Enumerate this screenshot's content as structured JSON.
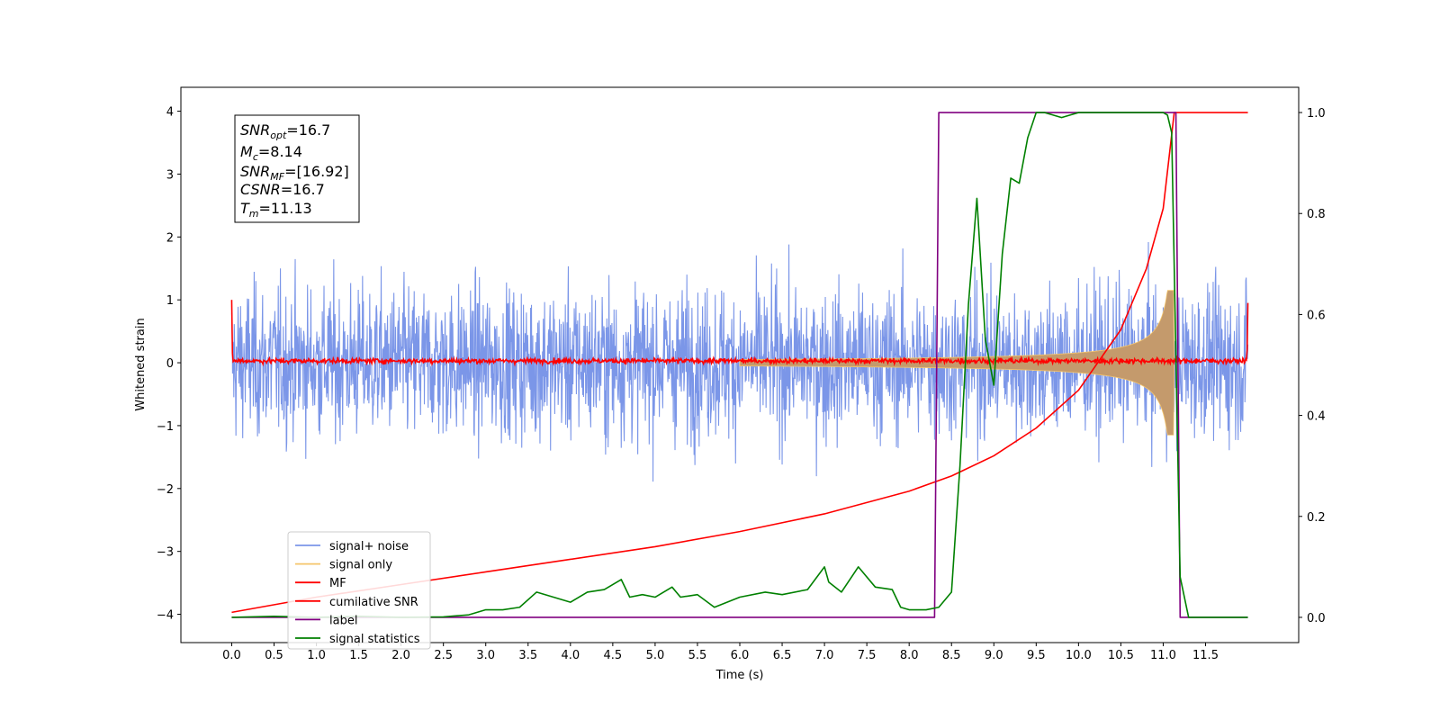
{
  "chart_data": {
    "type": "line",
    "xlabel": "Time (s)",
    "ylabel": "Whitened strain",
    "xlim": [
      -0.6,
      12.6
    ],
    "ylim": [
      -4.45,
      4.38
    ],
    "ylim_right": [
      -0.05,
      1.05
    ],
    "x_ticks": [
      "0.0",
      "0.5",
      "1.0",
      "1.5",
      "2.0",
      "2.5",
      "3.0",
      "3.5",
      "4.0",
      "4.5",
      "5.0",
      "5.5",
      "6.0",
      "6.5",
      "7.0",
      "7.5",
      "8.0",
      "8.5",
      "9.0",
      "9.5",
      "10.0",
      "10.5",
      "11.0",
      "11.5"
    ],
    "y_ticks_left": [
      "4",
      "3",
      "2",
      "1",
      "0",
      "−1",
      "−2",
      "−3",
      "−4"
    ],
    "y_ticks_right": [
      "1.0",
      "0.8",
      "0.6",
      "0.4",
      "0.2",
      "0.0"
    ],
    "legend_position": "lower-left",
    "grid": false,
    "annotation": {
      "snr_opt": {
        "base": "SNR",
        "sub": "opt",
        "value": "=16.7"
      },
      "mc": {
        "base": "M",
        "sub": "c",
        "value": "=8.14"
      },
      "snr_mf": {
        "base": "SNR",
        "sub": "MF",
        "value": "=[16.92]"
      },
      "csnr": {
        "base": "CSNR",
        "sub": "",
        "value": "=16.7"
      },
      "tm": {
        "base": "T",
        "sub": "m",
        "value": "=11.13"
      }
    },
    "series": [
      {
        "name": "signal+ noise",
        "axis": "left",
        "color": "#7b96e8",
        "duration": 12.0,
        "noise_amplitude": 1.35
      },
      {
        "name": "signal only",
        "axis": "left",
        "color": "#f5c56b",
        "fill_color": "#c49a6c",
        "merger_time": 11.13,
        "peak_amplitude": 1.15
      },
      {
        "name": "MF",
        "axis": "left",
        "color": "#ff0000",
        "baseline": 0.03,
        "spikes": [
          [
            0.0,
            1.0
          ],
          [
            12.0,
            0.95
          ]
        ]
      },
      {
        "name": "cumilative SNR",
        "axis": "right",
        "color": "#ff0000",
        "x": [
          0.0,
          1.0,
          2.0,
          3.0,
          4.0,
          5.0,
          6.0,
          7.0,
          8.0,
          8.5,
          9.0,
          9.5,
          10.0,
          10.5,
          10.8,
          11.0,
          11.13,
          12.0
        ],
        "y": [
          0.01,
          0.04,
          0.065,
          0.09,
          0.115,
          0.14,
          0.17,
          0.205,
          0.25,
          0.28,
          0.32,
          0.375,
          0.45,
          0.57,
          0.69,
          0.81,
          1.0,
          1.0
        ]
      },
      {
        "name": "label",
        "axis": "right",
        "color": "#800080",
        "x": [
          0.0,
          8.3,
          8.35,
          11.15,
          11.2,
          12.0
        ],
        "y": [
          0.0,
          0.0,
          1.0,
          1.0,
          0.0,
          0.0
        ]
      },
      {
        "name": "signal statistics",
        "axis": "right",
        "color": "#008000",
        "x": [
          0.0,
          0.5,
          1.0,
          1.5,
          2.0,
          2.5,
          2.8,
          3.0,
          3.2,
          3.4,
          3.6,
          3.8,
          4.0,
          4.2,
          4.4,
          4.6,
          4.7,
          4.85,
          5.0,
          5.2,
          5.3,
          5.5,
          5.7,
          6.0,
          6.3,
          6.5,
          6.8,
          7.0,
          7.05,
          7.2,
          7.4,
          7.6,
          7.8,
          7.9,
          8.0,
          8.2,
          8.35,
          8.5,
          8.6,
          8.7,
          8.8,
          8.9,
          9.0,
          9.1,
          9.2,
          9.3,
          9.4,
          9.5,
          9.6,
          9.8,
          10.0,
          10.3,
          10.6,
          10.9,
          11.0,
          11.05,
          11.1,
          11.2,
          11.3,
          12.0
        ],
        "y": [
          0.0,
          0.002,
          0.0,
          0.002,
          0.0,
          0.001,
          0.005,
          0.015,
          0.015,
          0.02,
          0.05,
          0.04,
          0.03,
          0.05,
          0.055,
          0.075,
          0.04,
          0.045,
          0.04,
          0.06,
          0.04,
          0.045,
          0.02,
          0.04,
          0.05,
          0.045,
          0.055,
          0.1,
          0.07,
          0.05,
          0.1,
          0.06,
          0.055,
          0.02,
          0.015,
          0.015,
          0.02,
          0.05,
          0.3,
          0.62,
          0.83,
          0.55,
          0.46,
          0.72,
          0.87,
          0.86,
          0.95,
          1.0,
          1.0,
          0.99,
          1.0,
          1.0,
          1.0,
          1.0,
          1.0,
          0.995,
          0.96,
          0.08,
          0.0,
          0.0
        ]
      }
    ]
  }
}
